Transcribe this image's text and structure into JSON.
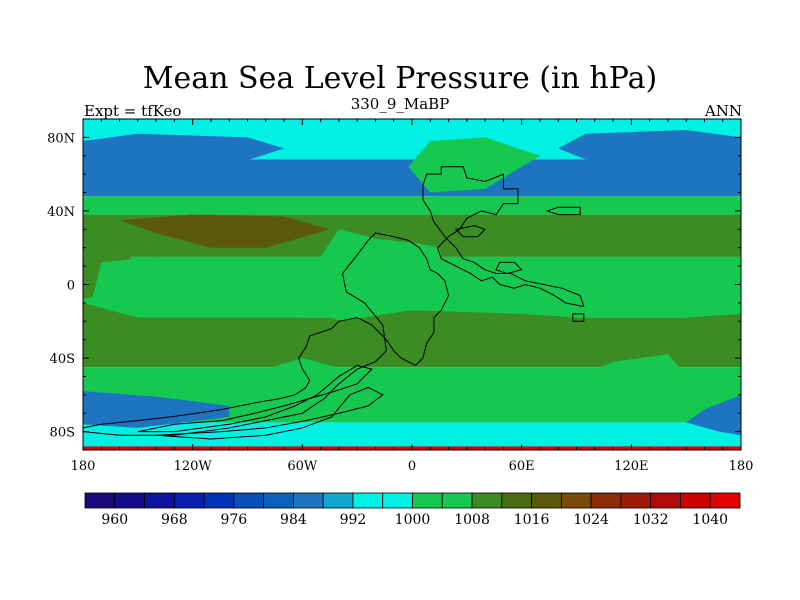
{
  "chart_data": {
    "type": "heatmap",
    "title": "Mean Sea Level Pressure (in hPa)",
    "subtitle": "330_9_MaBP",
    "left_label": "Expt = tfKeo",
    "right_label": "ANN",
    "xlim": [
      -180,
      180
    ],
    "ylim": [
      -90,
      90
    ],
    "x_ticks": [
      {
        "value": -180,
        "label": "180"
      },
      {
        "value": -120,
        "label": "120W"
      },
      {
        "value": -60,
        "label": "60W"
      },
      {
        "value": 0,
        "label": "0"
      },
      {
        "value": 60,
        "label": "60E"
      },
      {
        "value": 120,
        "label": "120E"
      },
      {
        "value": 180,
        "label": "180"
      }
    ],
    "y_ticks": [
      {
        "value": 80,
        "label": "80N"
      },
      {
        "value": 40,
        "label": "40N"
      },
      {
        "value": 0,
        "label": "0"
      },
      {
        "value": -40,
        "label": "40S"
      },
      {
        "value": -80,
        "label": "80S"
      }
    ],
    "colorbar": {
      "levels": [
        960,
        964,
        968,
        972,
        976,
        980,
        984,
        988,
        992,
        996,
        1000,
        1004,
        1008,
        1012,
        1016,
        1020,
        1024,
        1028,
        1032,
        1036,
        1040
      ],
      "labels": [
        "960",
        "968",
        "976",
        "984",
        "992",
        "1000",
        "1008",
        "1016",
        "1024",
        "1032",
        "1040"
      ],
      "colors": [
        "#1a0a7a",
        "#140c8c",
        "#0d14a0",
        "#0a1eb0",
        "#0033b8",
        "#0a4eb8",
        "#0a62bc",
        "#1f74c0",
        "#0fa8cc",
        "#00f0e4",
        "#00f0e4",
        "#14c850",
        "#14c850",
        "#3c8c24",
        "#4a6a14",
        "#5c5a0a",
        "#7a4a0a",
        "#8c2a0a",
        "#a01a0a",
        "#b00a0a",
        "#cc0000",
        "#e00000"
      ]
    },
    "fields": {
      "ocean_bands": [
        {
          "lat_from": 90,
          "lat_to": 68,
          "level": 992
        },
        {
          "lat_from": 68,
          "lat_to": 48,
          "level": 984
        },
        {
          "lat_from": 48,
          "lat_to": 38,
          "level": 1000
        },
        {
          "lat_from": 38,
          "lat_to": 15,
          "level": 1008
        },
        {
          "lat_from": 15,
          "lat_to": -18,
          "level": 1000
        },
        {
          "lat_from": -18,
          "lat_to": -45,
          "level": 1008
        },
        {
          "lat_from": -45,
          "lat_to": -75,
          "level": 1000
        },
        {
          "lat_from": -75,
          "lat_to": -90,
          "level": 992
        }
      ],
      "high_cells": [
        {
          "name": "subtropical-high",
          "lon": -110,
          "lat": 27,
          "level": 1016
        }
      ]
    }
  }
}
